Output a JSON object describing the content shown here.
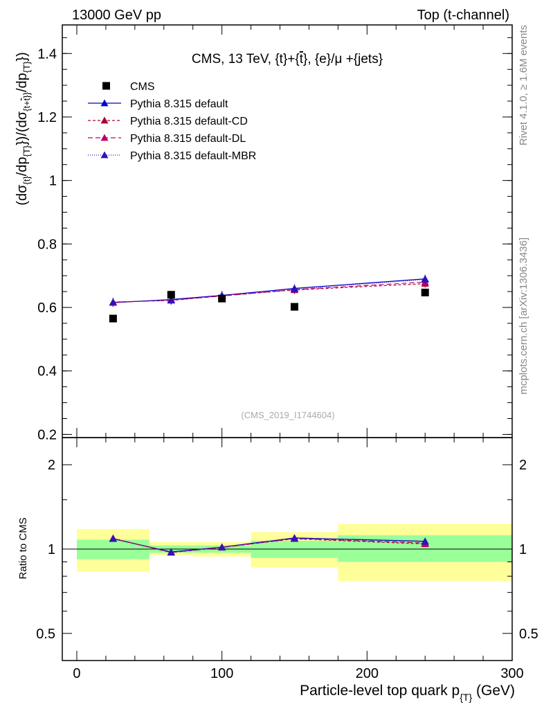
{
  "header": {
    "energy_label": "13000 GeV pp",
    "process_label": "Top (t-channel)"
  },
  "side_labels": {
    "rivet": "Rivet 4.1.0, ≥ 1.6M events",
    "mcplots": "mcplots.cern.ch [arXiv:1306.3436]"
  },
  "chart_data": {
    "type": "scatter",
    "title": "CMS, 13 TeV, {t}+{t̄}, {e}/μ +{jets}",
    "title_parts": {
      "a": "CMS, 13 TeV, {t}+{",
      "tbar": "t",
      "b": "}, {e}/μ +{jets}"
    },
    "watermark": "(CMS_2019_I1744604)",
    "xlabel": "Particle-level top quark p",
    "xlabel_sub": "{T}",
    "xlabel_unit": " (GeV)",
    "ylabel": "(dσ{t}/dp{T})/(dσ{t+t̄}/dp{T})",
    "ylabel_parts": {
      "p1": "(dσ",
      "s1": "{t}",
      "p2": "/dp",
      "s2": "{T}",
      "p3": "})/(dσ",
      "s3": "{t+",
      "s3bar": "t",
      "s3end": "}}",
      "p4": "/dp",
      "s4": "{T}",
      "p5": "})"
    },
    "ratio_ylabel": "Ratio to CMS",
    "xlim": [
      -10,
      300
    ],
    "ylim": [
      0.19,
      1.49
    ],
    "x_ticks": [
      0,
      100,
      200,
      300
    ],
    "x_tick_labels": [
      "0",
      "100",
      "200",
      "300"
    ],
    "y_ticks": [
      0.2,
      0.4,
      0.6,
      0.8,
      1.0,
      1.2,
      1.4
    ],
    "y_tick_labels": [
      "0.2",
      "0.4",
      "0.6",
      "0.8",
      "1",
      "1.2",
      "1.4"
    ],
    "ratio_ylim": [
      0.4,
      2.5
    ],
    "ratio_y_ticks": [
      0.5,
      1,
      2
    ],
    "ratio_y_tick_labels": [
      "0.5",
      "1",
      "2"
    ],
    "ratio_y_tick_labels_right": [
      "0.5",
      "1",
      "2"
    ],
    "bins": [
      [
        0,
        50
      ],
      [
        50,
        80
      ],
      [
        80,
        120
      ],
      [
        120,
        180
      ],
      [
        180,
        300
      ]
    ],
    "x": [
      25,
      65,
      100,
      150,
      240
    ],
    "cms": {
      "name": "CMS",
      "values": [
        0.565,
        0.64,
        0.628,
        0.602,
        0.647
      ],
      "ratio_band_inner": [
        [
          0.92,
          1.08
        ],
        [
          0.97,
          1.03
        ],
        [
          0.97,
          1.03
        ],
        [
          0.93,
          1.07
        ],
        [
          0.9,
          1.12
        ]
      ],
      "ratio_band_outer": [
        [
          0.83,
          1.18
        ],
        [
          0.95,
          1.06
        ],
        [
          0.94,
          1.06
        ],
        [
          0.86,
          1.15
        ],
        [
          0.77,
          1.23
        ]
      ]
    },
    "series": [
      {
        "name": "Pythia 8.315 default",
        "color": "#0000cc",
        "dash": "",
        "values": [
          0.615,
          0.625,
          0.638,
          0.66,
          0.69
        ],
        "ratios": [
          1.088,
          0.977,
          1.016,
          1.096,
          1.066
        ]
      },
      {
        "name": "Pythia 8.315 default-CD",
        "color": "#aa0033",
        "dash": "4,3",
        "values": [
          0.617,
          0.622,
          0.637,
          0.655,
          0.675
        ],
        "ratios": [
          1.092,
          0.972,
          1.014,
          1.088,
          1.043
        ]
      },
      {
        "name": "Pythia 8.315 default-DL",
        "color": "#bb0066",
        "dash": "7,4",
        "values": [
          0.616,
          0.623,
          0.636,
          0.656,
          0.68
        ],
        "ratios": [
          1.09,
          0.973,
          1.013,
          1.09,
          1.051
        ]
      },
      {
        "name": "Pythia 8.315 default-MBR",
        "color": "#3311bb",
        "dash": "1,2",
        "values": [
          0.617,
          0.623,
          0.638,
          0.658,
          0.688
        ],
        "ratios": [
          1.092,
          0.973,
          1.016,
          1.093,
          1.063
        ]
      }
    ],
    "colors": {
      "band_inner": "#99ff99",
      "band_outer": "#ffff99",
      "cms_marker": "#000000"
    }
  }
}
